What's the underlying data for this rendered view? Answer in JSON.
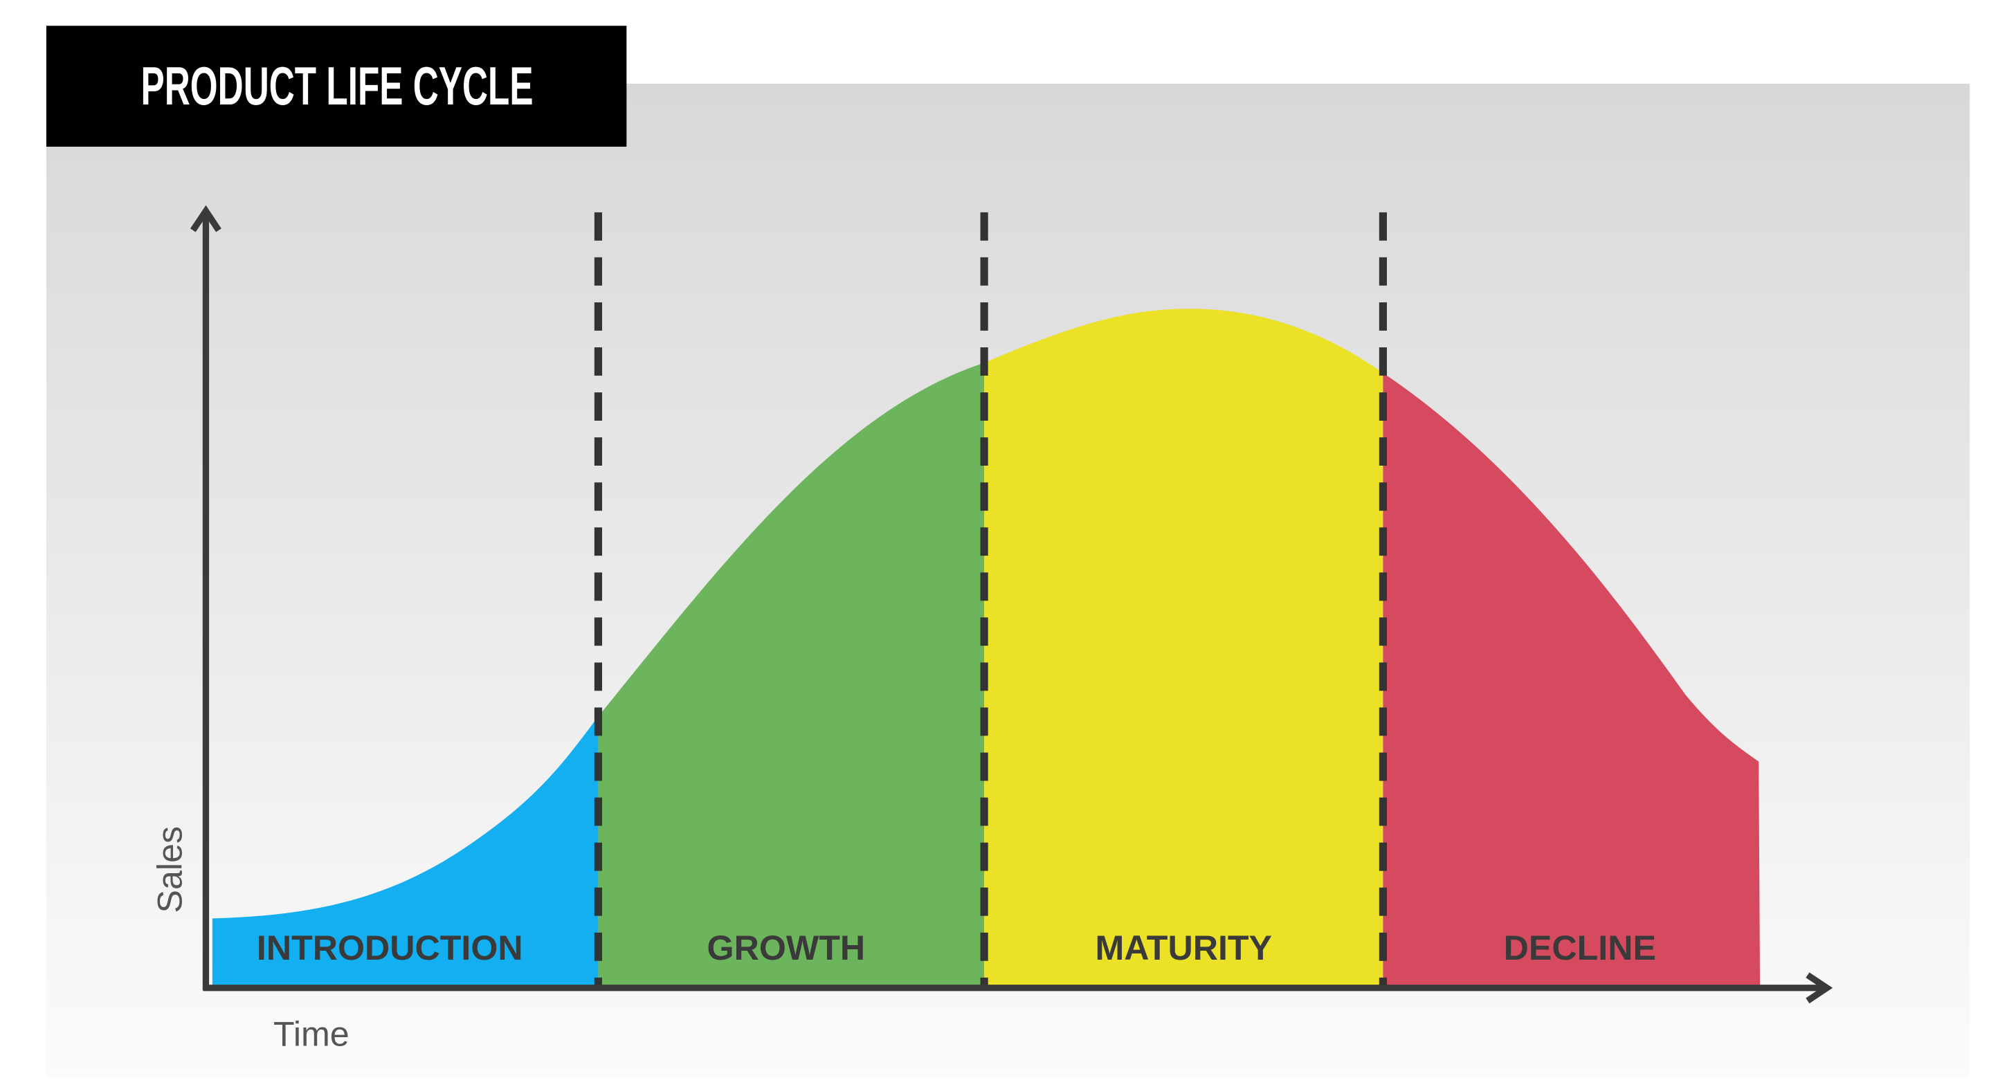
{
  "title": "PRODUCT LIFE CYCLE",
  "axes": {
    "y": "Sales",
    "x": "Time"
  },
  "stages": [
    {
      "label": "INTRODUCTION"
    },
    {
      "label": "GROWTH"
    },
    {
      "label": "MATURITY"
    },
    {
      "label": "DECLINE"
    }
  ]
}
